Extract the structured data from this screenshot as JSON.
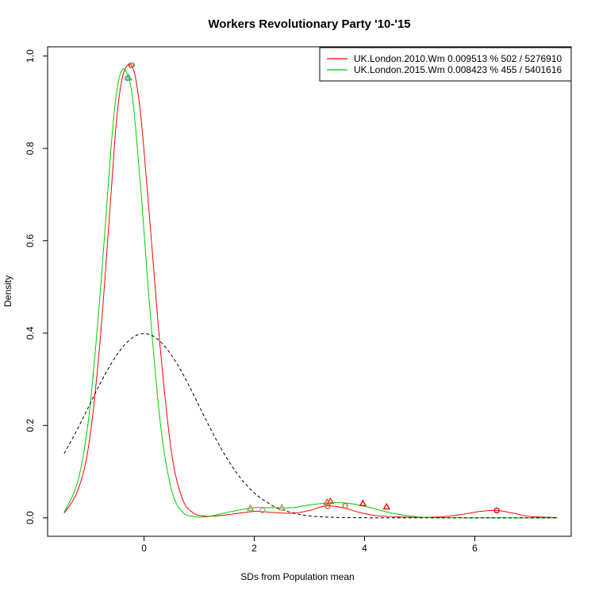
{
  "chart_data": {
    "type": "line",
    "title": "Workers Revolutionary Party '10-'15",
    "xlabel": "SDs from Population mean",
    "ylabel": "Density",
    "xlim": [
      -1.75,
      7.75
    ],
    "ylim": [
      -0.04,
      1.02
    ],
    "x_ticks": [
      0,
      2,
      4,
      6
    ],
    "y_ticks": [
      0.0,
      0.2,
      0.4,
      0.6,
      0.8,
      1.0
    ],
    "x_tick_labels": [
      "0",
      "2",
      "4",
      "6"
    ],
    "y_tick_labels": [
      "0.0",
      "0.2",
      "0.4",
      "0.6",
      "0.8",
      "1.0"
    ],
    "legend_position": "top-right",
    "series": [
      {
        "name": "UK.London.2010.Wm 0.009513 % 502 / 5276910",
        "color": "#ff0000",
        "style": "solid",
        "x": [
          -1.45,
          -1.2,
          -1.0,
          -0.8,
          -0.6,
          -0.5,
          -0.4,
          -0.3,
          -0.23,
          -0.15,
          -0.05,
          0.1,
          0.3,
          0.5,
          0.7,
          0.9,
          1.1,
          1.3,
          1.6,
          2.0,
          2.3,
          2.7,
          3.0,
          3.3,
          3.6,
          3.9,
          4.2,
          4.6,
          5.0,
          5.4,
          5.8,
          6.1,
          6.4,
          6.7,
          7.0,
          7.5
        ],
        "y": [
          0.01,
          0.06,
          0.16,
          0.38,
          0.7,
          0.86,
          0.95,
          0.98,
          0.98,
          0.95,
          0.86,
          0.65,
          0.36,
          0.14,
          0.04,
          0.01,
          0.004,
          0.004,
          0.008,
          0.014,
          0.012,
          0.01,
          0.016,
          0.026,
          0.022,
          0.012,
          0.005,
          0.002,
          0.001,
          0.002,
          0.008,
          0.014,
          0.016,
          0.01,
          0.003,
          0.0005
        ]
      },
      {
        "name": "UK.London.2015.Wm 0.008423 % 455 / 5401616",
        "color": "#00cd00",
        "style": "solid",
        "x": [
          -1.45,
          -1.2,
          -1.0,
          -0.8,
          -0.6,
          -0.5,
          -0.4,
          -0.3,
          -0.22,
          -0.15,
          -0.05,
          0.1,
          0.3,
          0.5,
          0.7,
          0.9,
          1.1,
          1.3,
          1.6,
          2.0,
          2.3,
          2.7,
          3.0,
          3.3,
          3.5,
          3.8,
          4.1,
          4.5,
          4.9,
          5.2,
          5.5,
          6.0,
          6.5,
          7.0,
          7.5
        ],
        "y": [
          0.012,
          0.08,
          0.22,
          0.48,
          0.8,
          0.92,
          0.97,
          0.96,
          0.92,
          0.84,
          0.7,
          0.46,
          0.2,
          0.06,
          0.012,
          0.003,
          0.002,
          0.006,
          0.014,
          0.022,
          0.022,
          0.022,
          0.028,
          0.032,
          0.033,
          0.03,
          0.022,
          0.01,
          0.003,
          0.0005,
          0.0002,
          0.0,
          0.0,
          0.0,
          0.0
        ]
      },
      {
        "name": "",
        "color": "#000000",
        "style": "dashed",
        "x": [
          -1.45,
          -1.2,
          -1.0,
          -0.8,
          -0.6,
          -0.4,
          -0.2,
          0.0,
          0.2,
          0.4,
          0.6,
          0.8,
          1.0,
          1.2,
          1.4,
          1.6,
          1.8,
          2.0,
          2.2,
          2.4,
          2.6,
          2.8,
          3.0,
          3.3,
          3.6,
          4.0,
          4.5,
          5.0,
          6.0,
          7.0,
          7.5
        ],
        "y": [
          0.139,
          0.194,
          0.242,
          0.29,
          0.333,
          0.368,
          0.391,
          0.399,
          0.391,
          0.368,
          0.333,
          0.29,
          0.242,
          0.194,
          0.15,
          0.111,
          0.079,
          0.054,
          0.036,
          0.022,
          0.014,
          0.008,
          0.004,
          0.0017,
          0.0006,
          0.0001,
          0.0,
          0.0,
          0.0,
          0.0,
          0.0
        ]
      }
    ],
    "markers": [
      {
        "shape": "circle",
        "color": "#ff0000",
        "x": -0.23,
        "y": 0.98
      },
      {
        "shape": "circle",
        "color": "#ff0000",
        "x": 6.4,
        "y": 0.016
      },
      {
        "shape": "triangle",
        "color": "#ff0000",
        "x": 3.97,
        "y": 0.031
      },
      {
        "shape": "triangle",
        "color": "#ff0000",
        "x": 4.4,
        "y": 0.024
      },
      {
        "shape": "triangle",
        "color": "#ff3300",
        "x": 3.38,
        "y": 0.036
      },
      {
        "shape": "circle",
        "color": "#cc6633",
        "x": 3.65,
        "y": 0.026
      },
      {
        "shape": "circle",
        "color": "#cc6633",
        "x": 3.33,
        "y": 0.025
      },
      {
        "shape": "circle",
        "color": "#cc9966",
        "x": 2.15,
        "y": 0.016
      },
      {
        "shape": "triangle",
        "color": "#aa9955",
        "x": 1.93,
        "y": 0.021
      },
      {
        "shape": "triangle",
        "color": "#aa9955",
        "x": 2.5,
        "y": 0.022
      },
      {
        "shape": "triangle",
        "color": "#cc6633",
        "x": 3.32,
        "y": 0.034
      },
      {
        "shape": "circle",
        "color": "#66aa66",
        "x": -0.22,
        "y": 0.98
      },
      {
        "shape": "triangle",
        "color": "#44aa66",
        "x": -0.28,
        "y": 0.953
      },
      {
        "shape": "circle",
        "color": "#66aa88",
        "x": -0.3,
        "y": 0.952
      }
    ]
  }
}
